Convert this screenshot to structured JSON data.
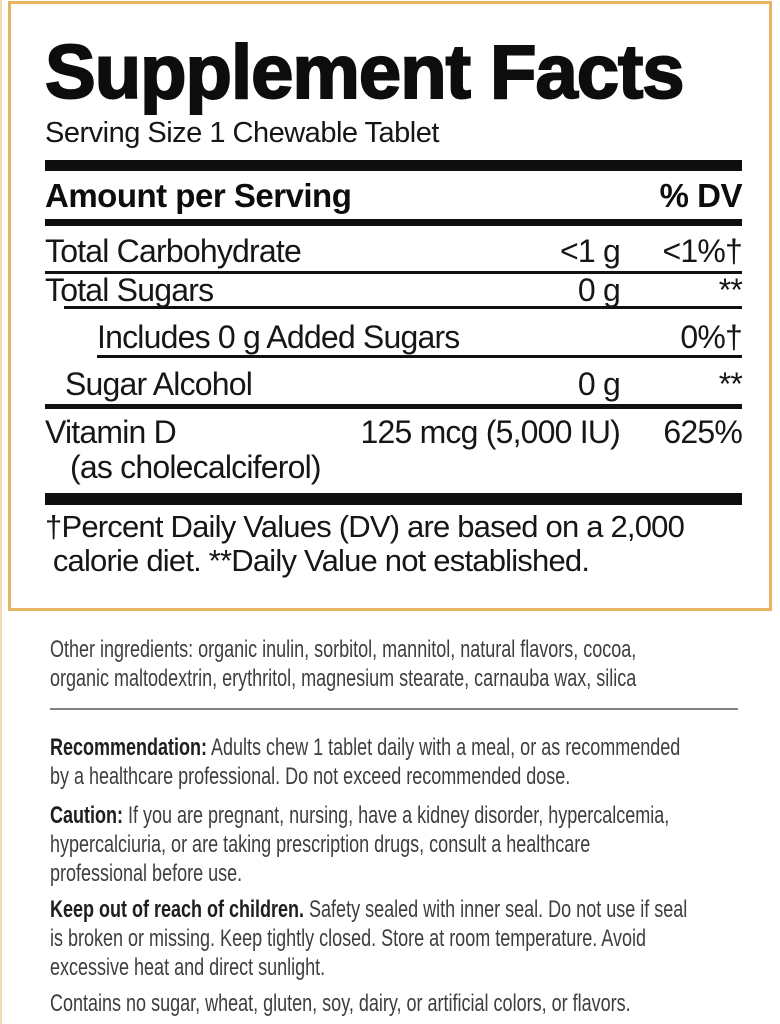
{
  "panel": {
    "title": "Supplement Facts",
    "serving_size": "Serving Size 1 Chewable Tablet",
    "header": {
      "amount_label": "Amount per Serving",
      "dv_label": "% DV"
    },
    "rows": [
      {
        "name": "Total Carbohydrate",
        "amount": "<1 g",
        "dv": "<1%†"
      },
      {
        "name": "Total Sugars",
        "amount": "0 g",
        "dv": "**"
      },
      {
        "name": "Includes 0 g Added Sugars",
        "amount": "",
        "dv": "0%†"
      },
      {
        "name": "Sugar Alcohol",
        "amount": "0 g",
        "dv": "**"
      },
      {
        "name": "Vitamin D",
        "sub": "(as cholecalciferol)",
        "amount": "125 mcg (5,000 IU)",
        "dv": "625%"
      }
    ],
    "footnote": "†Percent Daily Values (DV) are based on a 2,000\n calorie diet. **Daily Value not established."
  },
  "info": {
    "paragraphs": {
      "other": {
        "label": "",
        "text": "Other ingredients: organic inulin, sorbitol, mannitol, natural flavors, cocoa,\norganic maltodextrin, erythritol, magnesium stearate, carnauba wax, silica"
      },
      "recommendation": {
        "label": "Recommendation:",
        "text": " Adults chew 1 tablet daily with a meal, or as recommended\nby a healthcare professional. Do not exceed recommended dose."
      },
      "caution": {
        "label": "Caution:",
        "text": " If you are pregnant, nursing, have a kidney disorder, hypercalcemia,\nhypercalciuria, or are taking prescription drugs, consult a healthcare\nprofessional before use."
      },
      "keep_out": {
        "label": "Keep out of reach of children.",
        "text": " Safety sealed with inner seal. Do not use if seal\nis broken or missing. Keep tightly closed. Store at room temperature. Avoid\nexcessive heat and direct sunlight."
      },
      "contains": {
        "label": "",
        "text": "Contains no sugar, wheat, gluten, soy, dairy, or artificial colors, or flavors."
      }
    }
  },
  "colors": {
    "panel_border_gold": "#e6b462",
    "panel_text": "#111111",
    "body_text": "#3e3e3e"
  }
}
